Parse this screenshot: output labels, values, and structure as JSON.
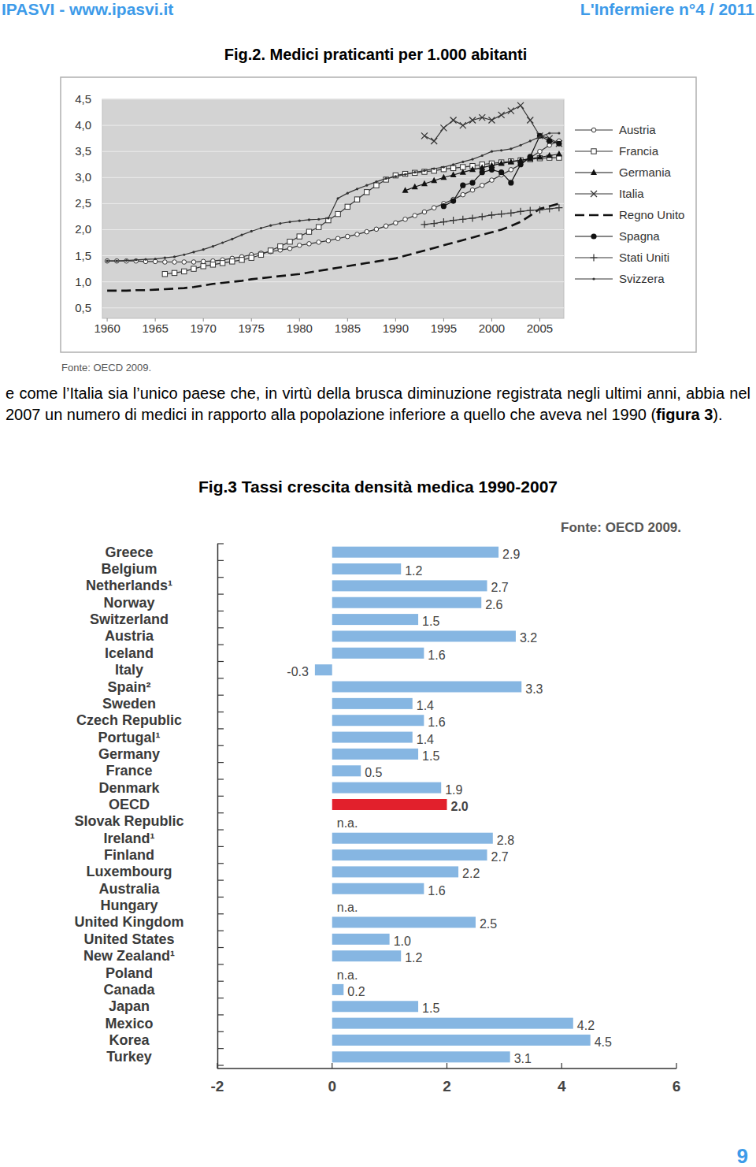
{
  "header": {
    "left": "IPASVI - www.ipasvi.it",
    "right": "L'Infermiere n°4 / 2011"
  },
  "chart_data": [
    {
      "type": "line",
      "title": "Fig.2. Medici praticanti per 1.000 abitanti",
      "source": "Fonte: OECD 2009.",
      "x": [
        1960,
        1961,
        1962,
        1963,
        1964,
        1965,
        1966,
        1967,
        1968,
        1969,
        1970,
        1971,
        1972,
        1973,
        1974,
        1975,
        1976,
        1977,
        1978,
        1979,
        1980,
        1981,
        1982,
        1983,
        1984,
        1985,
        1986,
        1987,
        1988,
        1989,
        1990,
        1991,
        1992,
        1993,
        1994,
        1995,
        1996,
        1997,
        1998,
        1999,
        2000,
        2001,
        2002,
        2003,
        2004,
        2005,
        2006,
        2007
      ],
      "xlim": [
        1959.5,
        2007.5
      ],
      "xticks": [
        1960,
        1965,
        1970,
        1975,
        1980,
        1985,
        1990,
        1995,
        2000,
        2005
      ],
      "ylim": [
        0.3,
        4.5
      ],
      "yticks": [
        {
          "value": 0.5,
          "label": "0,5"
        },
        {
          "value": 1.0,
          "label": "1,0"
        },
        {
          "value": 1.5,
          "label": "1,5"
        },
        {
          "value": 2.0,
          "label": "2,0"
        },
        {
          "value": 2.5,
          "label": "2,5"
        },
        {
          "value": 3.0,
          "label": "3,0"
        },
        {
          "value": 3.5,
          "label": "3,5"
        },
        {
          "value": 4.0,
          "label": "4,0"
        },
        {
          "value": 4.5,
          "label": "4,5"
        }
      ],
      "grid": true,
      "legend": "right",
      "series": [
        {
          "name": "Austria",
          "color": "#333333",
          "marker": "circle-open",
          "line_style": "solid",
          "values": [
            1.4,
            1.4,
            1.4,
            1.4,
            1.39,
            1.39,
            1.38,
            1.38,
            1.38,
            1.38,
            1.39,
            1.4,
            1.42,
            1.45,
            1.48,
            1.52,
            1.55,
            1.58,
            1.61,
            1.64,
            1.7,
            1.73,
            1.76,
            1.79,
            1.83,
            1.87,
            1.91,
            1.96,
            2.01,
            2.07,
            2.13,
            2.2,
            2.27,
            2.34,
            2.42,
            2.5,
            2.58,
            2.67,
            2.76,
            2.85,
            2.95,
            3.05,
            3.15,
            3.25,
            3.38,
            3.5,
            3.62,
            3.7
          ]
        },
        {
          "name": "Francia",
          "color": "#333333",
          "marker": "square-open",
          "line_style": "solid",
          "values": [
            null,
            null,
            null,
            null,
            null,
            null,
            1.15,
            1.17,
            1.2,
            1.25,
            1.3,
            1.33,
            1.36,
            1.39,
            1.42,
            1.46,
            1.52,
            1.6,
            1.68,
            1.77,
            1.87,
            1.96,
            2.05,
            2.18,
            2.3,
            2.44,
            2.58,
            2.72,
            2.85,
            2.96,
            3.04,
            3.07,
            3.09,
            3.11,
            3.13,
            3.16,
            3.18,
            3.2,
            3.22,
            3.25,
            3.27,
            3.29,
            3.31,
            3.33,
            3.35,
            3.37,
            3.38,
            3.38
          ]
        },
        {
          "name": "Germania",
          "color": "#111111",
          "marker": "triangle",
          "line_style": "solid",
          "values": [
            null,
            null,
            null,
            null,
            null,
            null,
            null,
            null,
            null,
            null,
            null,
            null,
            null,
            null,
            null,
            null,
            null,
            null,
            null,
            null,
            null,
            null,
            null,
            null,
            null,
            null,
            null,
            null,
            null,
            null,
            null,
            2.75,
            2.82,
            2.88,
            2.94,
            3.0,
            3.05,
            3.1,
            3.15,
            3.19,
            3.23,
            3.27,
            3.3,
            3.33,
            3.36,
            3.39,
            3.42,
            3.45
          ]
        },
        {
          "name": "Italia",
          "color": "#333333",
          "marker": "x",
          "line_style": "solid",
          "values": [
            null,
            null,
            null,
            null,
            null,
            null,
            null,
            null,
            null,
            null,
            null,
            null,
            null,
            null,
            null,
            null,
            null,
            null,
            null,
            null,
            null,
            null,
            null,
            null,
            null,
            null,
            null,
            null,
            null,
            null,
            null,
            null,
            null,
            3.8,
            3.7,
            3.95,
            4.1,
            4.0,
            4.1,
            4.15,
            4.1,
            4.2,
            4.28,
            4.38,
            4.1,
            3.8,
            3.75,
            3.65
          ]
        },
        {
          "name": "Regno Unito",
          "color": "#111111",
          "marker": "none",
          "line_style": "dashed",
          "values": [
            0.83,
            0.83,
            0.83,
            0.84,
            0.84,
            0.85,
            0.86,
            0.87,
            0.88,
            0.9,
            0.93,
            0.96,
            0.98,
            1.0,
            1.02,
            1.05,
            1.07,
            1.09,
            1.11,
            1.13,
            1.15,
            1.18,
            1.21,
            1.24,
            1.27,
            1.3,
            1.33,
            1.36,
            1.39,
            1.42,
            1.45,
            1.5,
            1.55,
            1.6,
            1.65,
            1.7,
            1.75,
            1.8,
            1.85,
            1.9,
            1.95,
            2.0,
            2.07,
            2.15,
            2.27,
            2.4,
            2.45,
            2.5
          ]
        },
        {
          "name": "Spagna",
          "color": "#111111",
          "marker": "circle",
          "line_style": "solid",
          "values": [
            null,
            null,
            null,
            null,
            null,
            null,
            null,
            null,
            null,
            null,
            null,
            null,
            null,
            null,
            null,
            null,
            null,
            null,
            null,
            null,
            null,
            null,
            null,
            null,
            null,
            null,
            null,
            null,
            null,
            null,
            null,
            null,
            null,
            null,
            null,
            2.45,
            2.55,
            2.85,
            2.9,
            3.1,
            3.15,
            3.1,
            2.9,
            3.25,
            3.4,
            3.8,
            3.7,
            3.65
          ]
        },
        {
          "name": "Stati Uniti",
          "color": "#333333",
          "marker": "plus",
          "line_style": "solid",
          "values": [
            null,
            null,
            null,
            null,
            null,
            null,
            null,
            null,
            null,
            null,
            null,
            null,
            null,
            null,
            null,
            null,
            null,
            null,
            null,
            null,
            null,
            null,
            null,
            null,
            null,
            null,
            null,
            null,
            null,
            null,
            null,
            null,
            null,
            2.1,
            2.12,
            2.15,
            2.18,
            2.2,
            2.22,
            2.25,
            2.28,
            2.3,
            2.32,
            2.35,
            2.37,
            2.38,
            2.4,
            2.42
          ]
        },
        {
          "name": "Svizzera",
          "color": "#333333",
          "marker": "dot",
          "line_style": "solid",
          "values": [
            1.4,
            1.4,
            1.41,
            1.42,
            1.43,
            1.44,
            1.46,
            1.48,
            1.52,
            1.57,
            1.62,
            1.68,
            1.75,
            1.82,
            1.9,
            1.97,
            2.03,
            2.08,
            2.12,
            2.15,
            2.17,
            2.19,
            2.2,
            2.22,
            2.6,
            2.7,
            2.78,
            2.85,
            2.92,
            2.98,
            3.02,
            3.06,
            3.1,
            3.13,
            3.17,
            3.2,
            3.25,
            3.3,
            3.35,
            3.42,
            3.5,
            3.52,
            3.55,
            3.62,
            3.7,
            3.78,
            3.85,
            3.85
          ]
        }
      ]
    },
    {
      "type": "bar",
      "orientation": "horizontal",
      "title": "Fig.3 Tassi crescita densità medica 1990-2007",
      "source": "Fonte: OECD 2009.",
      "categories": [
        "Greece",
        "Belgium",
        "Netherlands¹",
        "Norway",
        "Switzerland",
        "Austria",
        "Iceland",
        "Italy",
        "Spain²",
        "Sweden",
        "Czech Republic",
        "Portugal¹",
        "Germany",
        "France",
        "Denmark",
        "OECD",
        "Slovak Republic",
        "Ireland¹",
        "Finland",
        "Luxembourg",
        "Australia",
        "Hungary",
        "United Kingdom",
        "United States",
        "New Zealand¹",
        "Poland",
        "Canada",
        "Japan",
        "Mexico",
        "Korea",
        "Turkey"
      ],
      "values": [
        2.9,
        1.2,
        2.7,
        2.6,
        1.5,
        3.2,
        1.6,
        -0.3,
        3.3,
        1.4,
        1.6,
        1.4,
        1.5,
        0.5,
        1.9,
        2.0,
        null,
        2.8,
        2.7,
        2.2,
        1.6,
        null,
        2.5,
        1.0,
        1.2,
        null,
        0.2,
        1.5,
        4.2,
        4.5,
        3.1
      ],
      "value_labels": [
        "2.9",
        "1.2",
        "2.7",
        "2.6",
        "1.5",
        "3.2",
        "1.6",
        "-0.3",
        "3.3",
        "1.4",
        "1.6",
        "1.4",
        "1.5",
        "0.5",
        "1.9",
        "2.0",
        "n.a.",
        "2.8",
        "2.7",
        "2.2",
        "1.6",
        "n.a.",
        "2.5",
        "1.0",
        "1.2",
        "n.a.",
        "0.2",
        "1.5",
        "4.2",
        "4.5",
        "3.1"
      ],
      "colors": [
        "#86b6e2",
        "#86b6e2",
        "#86b6e2",
        "#86b6e2",
        "#86b6e2",
        "#86b6e2",
        "#86b6e2",
        "#86b6e2",
        "#86b6e2",
        "#86b6e2",
        "#86b6e2",
        "#86b6e2",
        "#86b6e2",
        "#86b6e2",
        "#86b6e2",
        "#e2202c",
        "#86b6e2",
        "#86b6e2",
        "#86b6e2",
        "#86b6e2",
        "#86b6e2",
        "#86b6e2",
        "#86b6e2",
        "#86b6e2",
        "#86b6e2",
        "#86b6e2",
        "#86b6e2",
        "#86b6e2",
        "#86b6e2",
        "#86b6e2",
        "#86b6e2"
      ],
      "xlim": [
        -2,
        6
      ],
      "xticks": [
        -2,
        0,
        2,
        4,
        6
      ],
      "data_labels": true
    }
  ],
  "paragraph": {
    "runs": [
      {
        "text": "e come l’Italia sia l’unico paese che, in virtù della brusca diminuzione registrata negli ultimi anni, abbia nel 2007 un numero di medici in rapporto alla popolazione inferiore a quello che aveva nel 1990 (",
        "bold": false
      },
      {
        "text": "figura 3",
        "bold": true
      },
      {
        "text": ").",
        "bold": false
      }
    ]
  },
  "page_number": "9"
}
